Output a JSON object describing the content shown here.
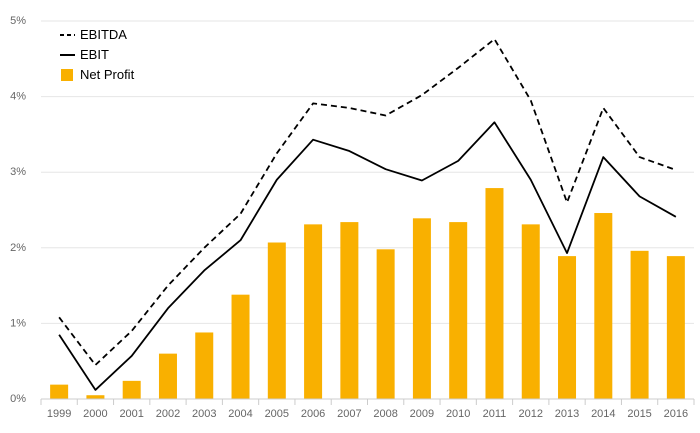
{
  "chart_data": {
    "type": "bar",
    "title": "",
    "xlabel": "",
    "ylabel": "",
    "categories": [
      "1999",
      "2000",
      "2001",
      "2002",
      "2003",
      "2004",
      "2005",
      "2006",
      "2007",
      "2008",
      "2009",
      "2010",
      "2011",
      "2012",
      "2013",
      "2014",
      "2015",
      "2016"
    ],
    "ylim": [
      0,
      5
    ],
    "y_ticks": [
      "0%",
      "1%",
      "2%",
      "3%",
      "4%",
      "5%"
    ],
    "grid": true,
    "legend_position": "top-left",
    "series": [
      {
        "name": "EBITDA",
        "mark": "line",
        "line_style": "dashed",
        "color": "#000000",
        "values": [
          1.08,
          0.45,
          0.9,
          1.5,
          2.0,
          2.45,
          3.25,
          3.91,
          3.85,
          3.75,
          4.02,
          4.38,
          4.76,
          3.95,
          2.6,
          3.85,
          3.2,
          3.03
        ]
      },
      {
        "name": "EBIT",
        "mark": "line",
        "line_style": "solid",
        "color": "#000000",
        "values": [
          0.85,
          0.12,
          0.57,
          1.2,
          1.7,
          2.1,
          2.9,
          3.43,
          3.28,
          3.04,
          2.89,
          3.15,
          3.66,
          2.9,
          1.93,
          3.2,
          2.68,
          2.41
        ]
      },
      {
        "name": "Net Profit",
        "mark": "bar",
        "color": "#f9b000",
        "values": [
          0.19,
          0.05,
          0.24,
          0.6,
          0.88,
          1.38,
          2.07,
          2.31,
          2.34,
          1.98,
          2.39,
          2.34,
          2.79,
          2.31,
          1.89,
          2.46,
          1.96,
          1.89
        ]
      }
    ]
  }
}
